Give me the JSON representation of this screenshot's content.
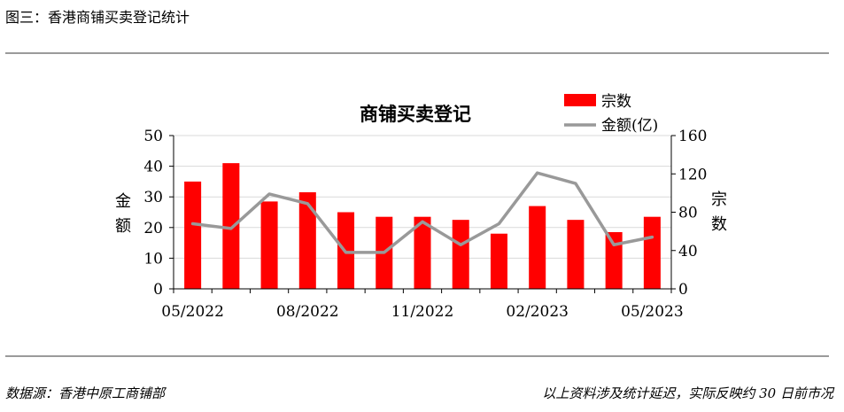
{
  "header": {
    "figure_title": "图三：香港商铺买卖登记统计"
  },
  "footer": {
    "source": "数据源：香港中原工商铺部",
    "note": "以上资料涉及统计延迟，实际反映约 30 日前市况"
  },
  "colors": {
    "bar": "#ff0000",
    "line": "#999999",
    "grid": "#d9d9d9",
    "rule": "#9a9a9a"
  },
  "chart_data": {
    "type": "bar",
    "title": "商铺买卖登记",
    "x_tick_labels": [
      "05/2022",
      "08/2022",
      "11/2022",
      "02/2023",
      "05/2023"
    ],
    "categories": [
      "05/2022",
      "06/2022",
      "07/2022",
      "08/2022",
      "09/2022",
      "10/2022",
      "11/2022",
      "12/2022",
      "01/2023",
      "02/2023",
      "03/2023",
      "04/2023",
      "05/2023"
    ],
    "left_axis_label": "金额",
    "right_axis_label": "宗数",
    "left_ylim": [
      0,
      50
    ],
    "left_ticks": [
      0,
      10,
      20,
      30,
      40,
      50
    ],
    "right_ylim": [
      0,
      160
    ],
    "right_ticks": [
      0,
      40,
      80,
      120,
      160
    ],
    "grid": "horizontal",
    "legend_position": "top-right",
    "series": [
      {
        "name": "宗数",
        "type": "bar",
        "axis": "left",
        "values": [
          35,
          41,
          28.5,
          31.5,
          25,
          23.5,
          23.5,
          22.5,
          18,
          27,
          22.5,
          18.5,
          23.5
        ]
      },
      {
        "name": "金额(亿)",
        "type": "line",
        "axis": "right",
        "values": [
          68,
          63,
          99,
          89,
          38,
          38,
          70,
          46,
          68,
          121,
          110,
          46,
          54
        ]
      }
    ]
  }
}
